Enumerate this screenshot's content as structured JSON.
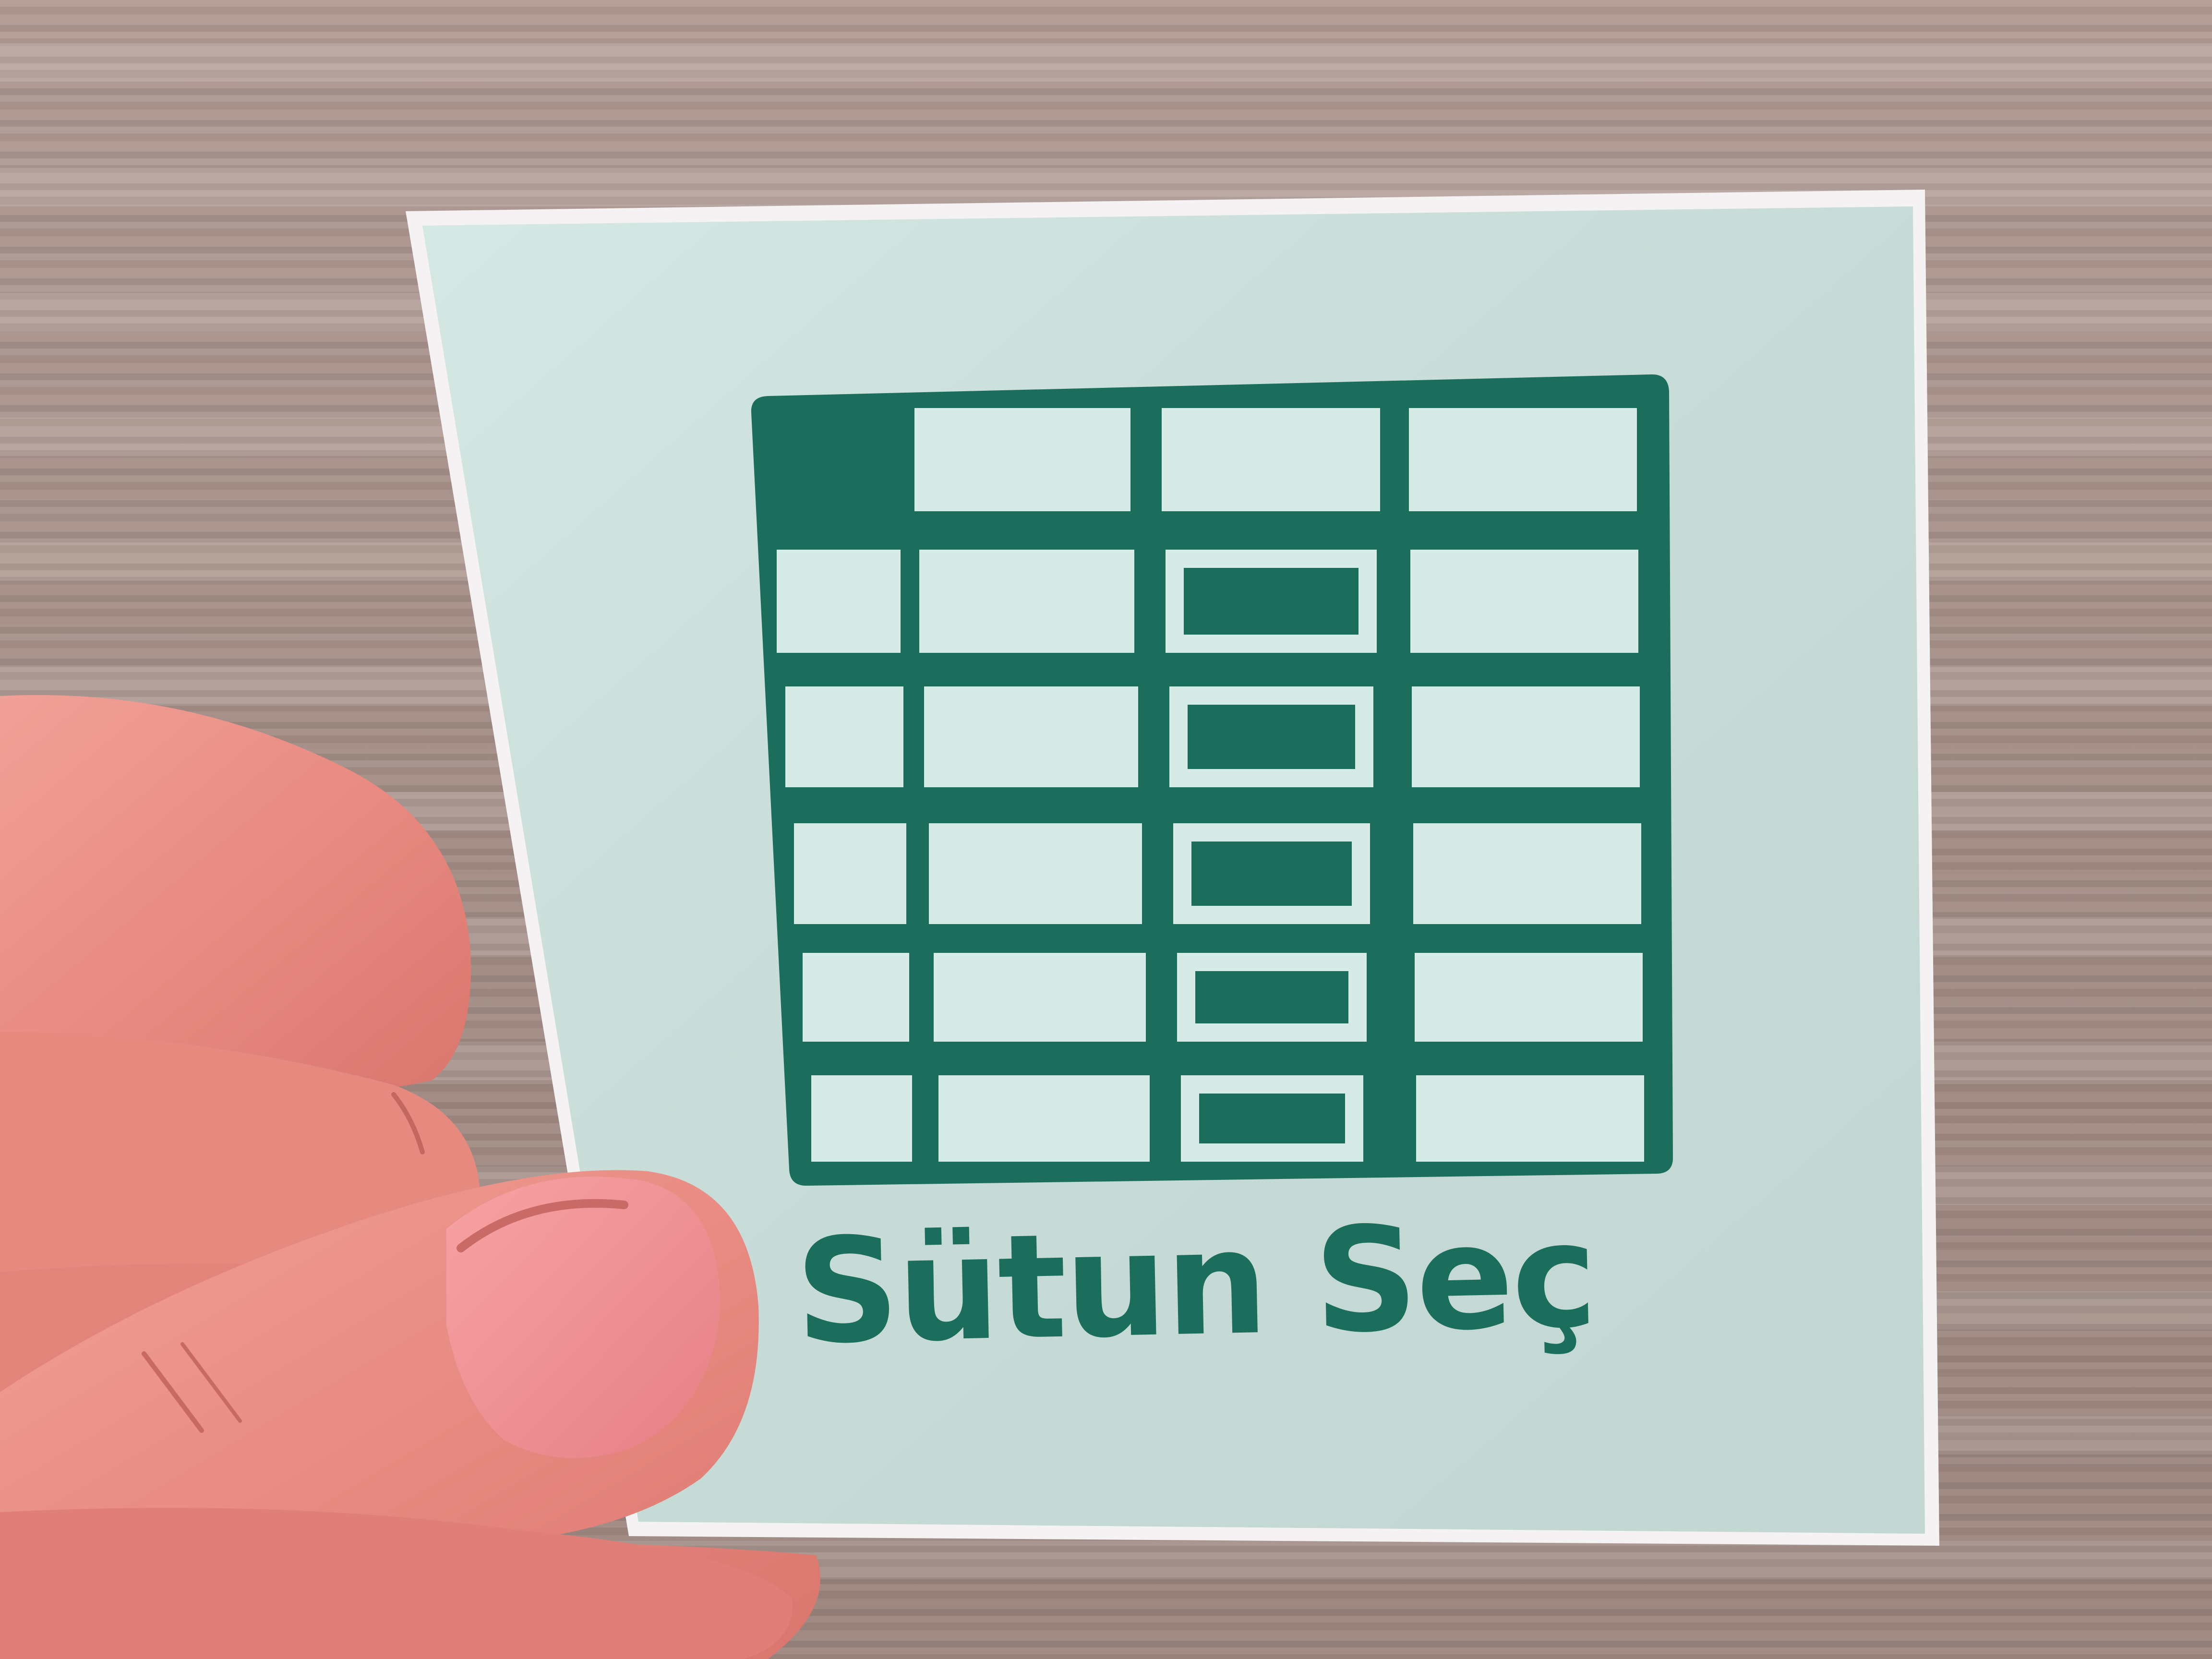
{
  "card": {
    "label": "Sütun Seç",
    "icon": "table-select-column-icon",
    "colors": {
      "card_background": "#cfe5e0",
      "ink": "#1b6e5c",
      "table_background": "#d6ebe6",
      "wood_background": "#ac9891",
      "skin": "#ec8f86"
    }
  }
}
